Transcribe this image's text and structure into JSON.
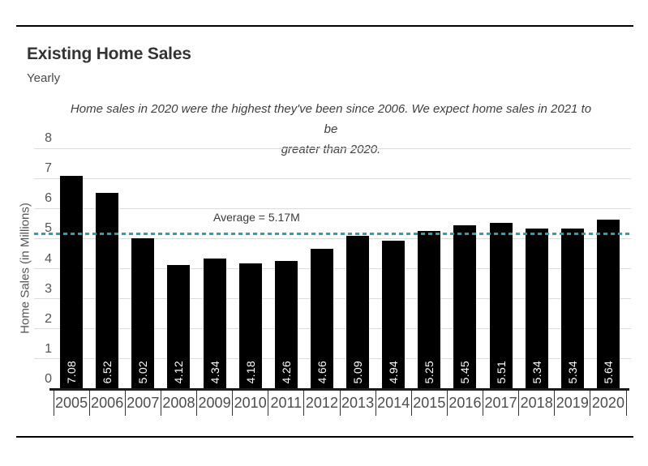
{
  "page": {
    "title": "Existing Home Sales",
    "subtitle": "Yearly",
    "annotation": {
      "line1": "Home sales in 2020 were the highest they've been since 2006. We expect home sales in 2021 to be",
      "line2": "greater than 2020."
    }
  },
  "chart_data": {
    "type": "bar",
    "title": "Existing Home Sales",
    "subtitle": "Yearly",
    "annotation": "Home sales in 2020 were the highest they've been since 2006. We expect home sales in 2021 to be greater than 2020.",
    "categories": [
      "2005",
      "2006",
      "2007",
      "2008",
      "2009",
      "2010",
      "2011",
      "2012",
      "2013",
      "2014",
      "2015",
      "2016",
      "2017",
      "2018",
      "2019",
      "2020"
    ],
    "values": [
      7.08,
      6.52,
      5.02,
      4.12,
      4.34,
      4.18,
      4.26,
      4.66,
      5.09,
      4.94,
      5.25,
      5.45,
      5.51,
      5.34,
      5.34,
      5.64
    ],
    "value_labels": [
      "7.08",
      "6.52",
      "5.02",
      "4.12",
      "4.34",
      "4.18",
      "4.26",
      "4.66",
      "5.09",
      "4.94",
      "5.25",
      "5.45",
      "5.51",
      "5.34",
      "5.34",
      "5.64"
    ],
    "xlabel": "",
    "ylabel": "Home Sales (in Millions)",
    "ylim": [
      0,
      8
    ],
    "yticks": [
      0,
      1,
      2,
      3,
      4,
      5,
      6,
      7,
      8
    ],
    "grid": true,
    "legend": "none",
    "bar_color": "#000000",
    "value_label_color": "#ffffff",
    "average_line": {
      "value": 5.17,
      "label": "Average = 5.17M",
      "color": "#2f9fac",
      "style": "dashed"
    }
  }
}
